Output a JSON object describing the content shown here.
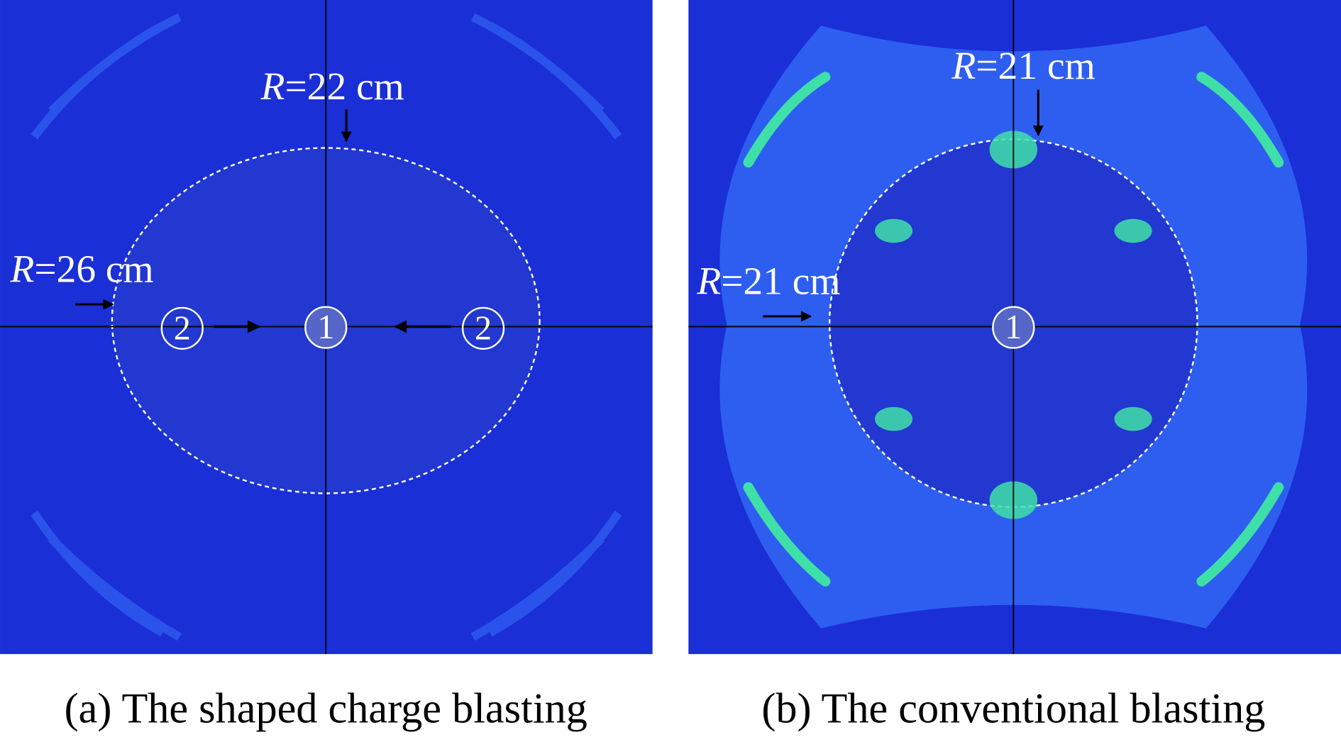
{
  "panels": [
    {
      "caption": "(a) The shaped charge blasting",
      "annotations": [
        {
          "symbol": "R",
          "text": "=22 cm"
        },
        {
          "symbol": "R",
          "text": "=26 cm"
        }
      ],
      "markers": [
        "1",
        "2",
        "2"
      ]
    },
    {
      "caption": "(b) The conventional blasting",
      "annotations": [
        {
          "symbol": "R",
          "text": "=21 cm"
        },
        {
          "symbol": "R",
          "text": "=21 cm"
        }
      ],
      "markers": [
        "1"
      ]
    }
  ]
}
